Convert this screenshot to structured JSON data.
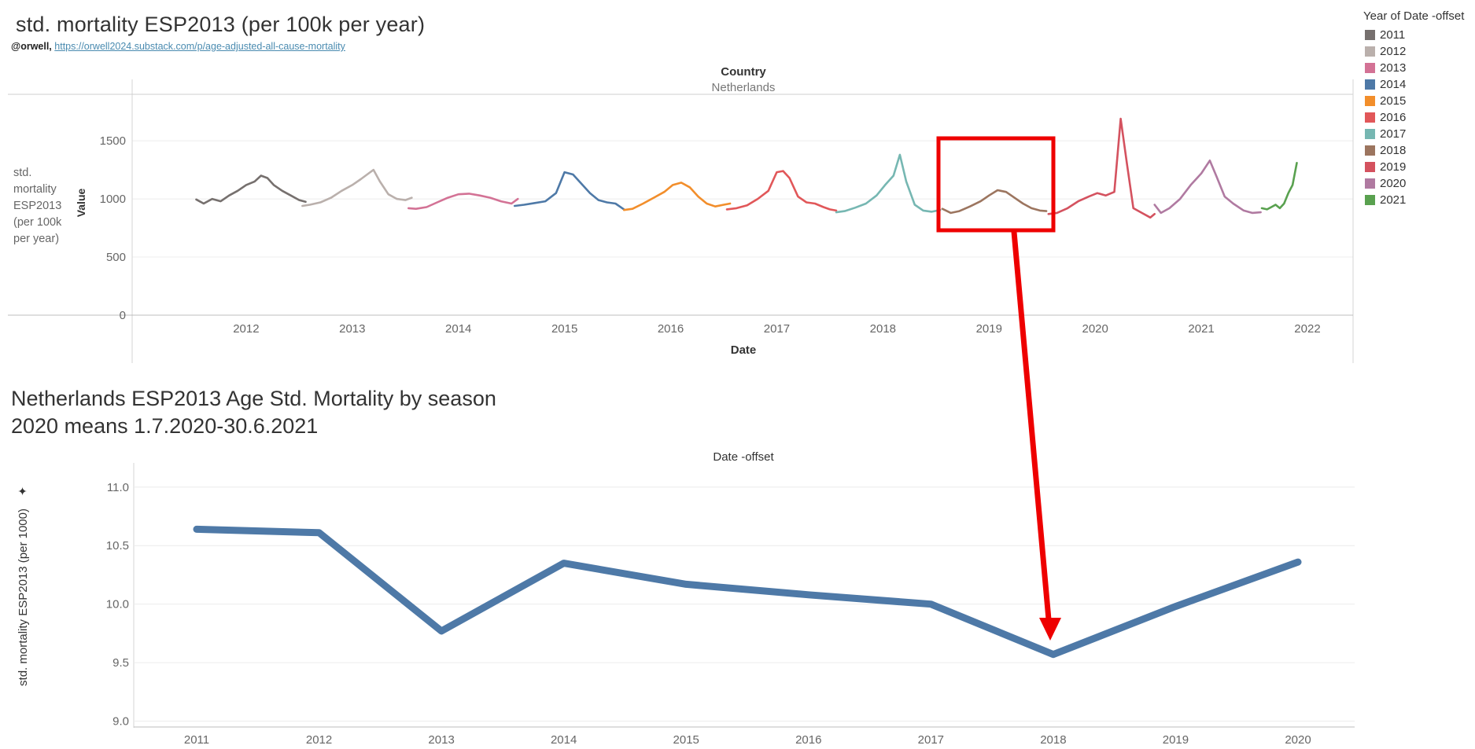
{
  "header": {
    "title": "std. mortality ESP2013  (per 100k per year)",
    "byline_handle": "@orwell,",
    "byline_link": "https://orwell2024.substack.com/p/age-adjusted-all-cause-mortality"
  },
  "legend": {
    "title": "Year of Date -offset",
    "items": [
      {
        "label": "2011",
        "color": "#76706e"
      },
      {
        "label": "2012",
        "color": "#bab0ac"
      },
      {
        "label": "2013",
        "color": "#d37295"
      },
      {
        "label": "2014",
        "color": "#4e79a7"
      },
      {
        "label": "2015",
        "color": "#f28e2b"
      },
      {
        "label": "2016",
        "color": "#e15759"
      },
      {
        "label": "2017",
        "color": "#76b7b2"
      },
      {
        "label": "2018",
        "color": "#9c755f"
      },
      {
        "label": "2019",
        "color": "#d4525f"
      },
      {
        "label": "2020",
        "color": "#b07aa1"
      },
      {
        "label": "2021",
        "color": "#59a14f"
      }
    ]
  },
  "bottom": {
    "title_line1": "Netherlands ESP2013 Age Std. Mortality by season",
    "title_line2": "2020 means 1.7.2020-30.6.2021"
  },
  "annotation": {
    "highlight_color": "#ee0000"
  },
  "chart_data": [
    {
      "type": "line",
      "header_label": "Country",
      "header_value": "Netherlands",
      "xlabel": "Date",
      "ylabel": "Value",
      "side_label": [
        "std.",
        "mortality",
        "ESP2013",
        "(per 100k",
        "per year)"
      ],
      "xlim": [
        2011.0,
        2022.43
      ],
      "ylim": [
        0,
        1900
      ],
      "y_ticks": [
        0,
        500,
        1000,
        1500
      ],
      "x_ticks": [
        "2012",
        "2013",
        "2014",
        "2015",
        "2016",
        "2017",
        "2018",
        "2019",
        "2020",
        "2021",
        "2022"
      ],
      "grid": true,
      "legend_position": "right",
      "series": [
        {
          "name": "2011",
          "points": [
            [
              2011.53,
              995
            ],
            [
              2011.6,
              960
            ],
            [
              2011.68,
              1000
            ],
            [
              2011.76,
              980
            ],
            [
              2011.84,
              1030
            ],
            [
              2011.92,
              1070
            ],
            [
              2012.0,
              1120
            ],
            [
              2012.08,
              1150
            ],
            [
              2012.14,
              1200
            ],
            [
              2012.2,
              1180
            ],
            [
              2012.26,
              1120
            ],
            [
              2012.34,
              1070
            ],
            [
              2012.42,
              1030
            ],
            [
              2012.5,
              990
            ],
            [
              2012.56,
              975
            ]
          ]
        },
        {
          "name": "2012",
          "points": [
            [
              2012.53,
              940
            ],
            [
              2012.6,
              950
            ],
            [
              2012.7,
              970
            ],
            [
              2012.8,
              1010
            ],
            [
              2012.9,
              1070
            ],
            [
              2013.0,
              1120
            ],
            [
              2013.08,
              1170
            ],
            [
              2013.14,
              1210
            ],
            [
              2013.2,
              1250
            ],
            [
              2013.26,
              1150
            ],
            [
              2013.34,
              1040
            ],
            [
              2013.42,
              1000
            ],
            [
              2013.5,
              990
            ],
            [
              2013.56,
              1010
            ]
          ]
        },
        {
          "name": "2013",
          "points": [
            [
              2013.53,
              920
            ],
            [
              2013.6,
              915
            ],
            [
              2013.7,
              930
            ],
            [
              2013.8,
              970
            ],
            [
              2013.9,
              1010
            ],
            [
              2014.0,
              1040
            ],
            [
              2014.1,
              1045
            ],
            [
              2014.2,
              1030
            ],
            [
              2014.3,
              1010
            ],
            [
              2014.4,
              980
            ],
            [
              2014.5,
              960
            ],
            [
              2014.56,
              1000
            ]
          ]
        },
        {
          "name": "2014",
          "points": [
            [
              2014.53,
              940
            ],
            [
              2014.62,
              950
            ],
            [
              2014.72,
              965
            ],
            [
              2014.82,
              980
            ],
            [
              2014.92,
              1050
            ],
            [
              2015.0,
              1230
            ],
            [
              2015.08,
              1210
            ],
            [
              2015.16,
              1130
            ],
            [
              2015.24,
              1050
            ],
            [
              2015.32,
              990
            ],
            [
              2015.4,
              970
            ],
            [
              2015.48,
              960
            ],
            [
              2015.56,
              910
            ]
          ]
        },
        {
          "name": "2015",
          "points": [
            [
              2015.56,
              905
            ],
            [
              2015.64,
              915
            ],
            [
              2015.74,
              960
            ],
            [
              2015.84,
              1010
            ],
            [
              2015.94,
              1060
            ],
            [
              2016.02,
              1120
            ],
            [
              2016.1,
              1140
            ],
            [
              2016.18,
              1100
            ],
            [
              2016.26,
              1020
            ],
            [
              2016.34,
              960
            ],
            [
              2016.42,
              935
            ],
            [
              2016.5,
              950
            ],
            [
              2016.56,
              960
            ]
          ]
        },
        {
          "name": "2016",
          "points": [
            [
              2016.53,
              910
            ],
            [
              2016.62,
              920
            ],
            [
              2016.72,
              945
            ],
            [
              2016.82,
              1000
            ],
            [
              2016.92,
              1070
            ],
            [
              2017.0,
              1230
            ],
            [
              2017.06,
              1240
            ],
            [
              2017.12,
              1180
            ],
            [
              2017.2,
              1020
            ],
            [
              2017.28,
              970
            ],
            [
              2017.36,
              960
            ],
            [
              2017.44,
              930
            ],
            [
              2017.5,
              910
            ],
            [
              2017.56,
              900
            ]
          ]
        },
        {
          "name": "2017",
          "points": [
            [
              2017.56,
              885
            ],
            [
              2017.64,
              895
            ],
            [
              2017.74,
              925
            ],
            [
              2017.84,
              960
            ],
            [
              2017.94,
              1030
            ],
            [
              2018.02,
              1120
            ],
            [
              2018.1,
              1200
            ],
            [
              2018.16,
              1380
            ],
            [
              2018.22,
              1150
            ],
            [
              2018.3,
              950
            ],
            [
              2018.38,
              900
            ],
            [
              2018.46,
              890
            ],
            [
              2018.54,
              905
            ]
          ]
        },
        {
          "name": "2018",
          "points": [
            [
              2018.56,
              915
            ],
            [
              2018.64,
              880
            ],
            [
              2018.72,
              895
            ],
            [
              2018.82,
              935
            ],
            [
              2018.92,
              980
            ],
            [
              2019.0,
              1030
            ],
            [
              2019.08,
              1075
            ],
            [
              2019.16,
              1060
            ],
            [
              2019.24,
              1010
            ],
            [
              2019.32,
              960
            ],
            [
              2019.4,
              920
            ],
            [
              2019.48,
              900
            ],
            [
              2019.54,
              895
            ]
          ]
        },
        {
          "name": "2019",
          "points": [
            [
              2019.56,
              870
            ],
            [
              2019.64,
              880
            ],
            [
              2019.74,
              920
            ],
            [
              2019.84,
              980
            ],
            [
              2019.94,
              1020
            ],
            [
              2020.02,
              1050
            ],
            [
              2020.1,
              1030
            ],
            [
              2020.18,
              1060
            ],
            [
              2020.24,
              1690
            ],
            [
              2020.3,
              1300
            ],
            [
              2020.36,
              920
            ],
            [
              2020.44,
              880
            ],
            [
              2020.52,
              840
            ],
            [
              2020.56,
              870
            ]
          ]
        },
        {
          "name": "2020",
          "points": [
            [
              2020.56,
              950
            ],
            [
              2020.62,
              880
            ],
            [
              2020.7,
              920
            ],
            [
              2020.8,
              1000
            ],
            [
              2020.9,
              1120
            ],
            [
              2021.0,
              1220
            ],
            [
              2021.08,
              1330
            ],
            [
              2021.14,
              1200
            ],
            [
              2021.22,
              1020
            ],
            [
              2021.3,
              960
            ],
            [
              2021.4,
              900
            ],
            [
              2021.48,
              880
            ],
            [
              2021.56,
              885
            ]
          ]
        },
        {
          "name": "2021",
          "points": [
            [
              2021.57,
              920
            ],
            [
              2021.62,
              910
            ],
            [
              2021.66,
              930
            ],
            [
              2021.7,
              950
            ],
            [
              2021.74,
              920
            ],
            [
              2021.78,
              960
            ],
            [
              2021.82,
              1050
            ],
            [
              2021.86,
              1120
            ],
            [
              2021.9,
              1310
            ]
          ]
        }
      ]
    },
    {
      "type": "line",
      "header_label": "Date -offset",
      "ylabel": "std. mortality ESP2013 (per 1000)",
      "categories": [
        "2011",
        "2012",
        "2013",
        "2014",
        "2015",
        "2016",
        "2017",
        "2018",
        "2019",
        "2020"
      ],
      "y_ticks": [
        "9.0",
        "9.5",
        "10.0",
        "10.5",
        "11.0"
      ],
      "ylim": [
        8.95,
        11.2
      ],
      "grid": true,
      "series": [
        {
          "values": [
            10.64,
            10.61,
            9.77,
            10.35,
            10.17,
            10.08,
            10.0,
            9.57,
            9.98,
            10.36
          ],
          "color": "#4e79a7"
        }
      ]
    }
  ]
}
